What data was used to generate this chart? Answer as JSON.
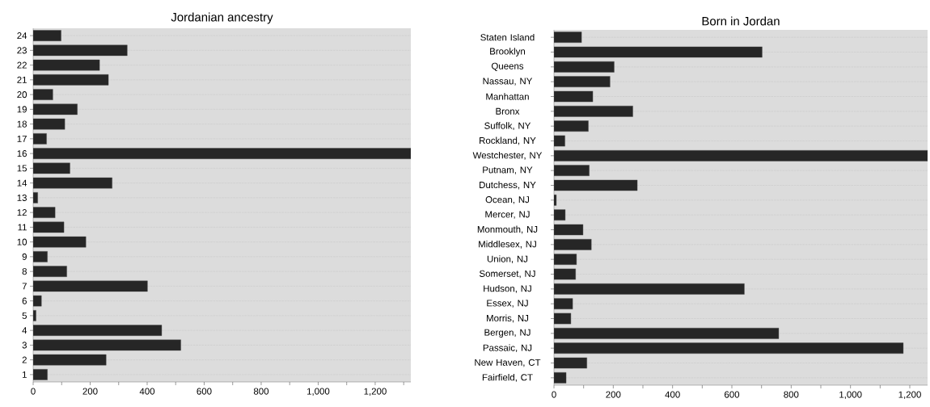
{
  "chart_data": [
    {
      "type": "bar",
      "orientation": "horizontal",
      "title": "Jordanian ancestry",
      "grid": "y",
      "color": "#262626",
      "categories": [
        "24",
        "23",
        "22",
        "21",
        "20",
        "19",
        "18",
        "17",
        "16",
        "15",
        "14",
        "13",
        "12",
        "11",
        "10",
        "9",
        "8",
        "7",
        "6",
        "5",
        "4",
        "3",
        "2",
        "1"
      ],
      "values": [
        98,
        330,
        233,
        264,
        69,
        155,
        111,
        47,
        1325,
        129,
        277,
        16,
        77,
        108,
        185,
        50,
        118,
        401,
        29,
        10,
        451,
        518,
        256,
        50
      ],
      "xlim": [
        0,
        1325
      ],
      "xticks": [
        0,
        {
          "value": 100,
          "label": null
        },
        200,
        {
          "value": 300,
          "label": null
        },
        400,
        {
          "value": 500,
          "label": null
        },
        600,
        {
          "value": 700,
          "label": null
        },
        800,
        {
          "value": 900,
          "label": null
        },
        {
          "value": 1000,
          "label": "1,000"
        },
        {
          "value": 1100,
          "label": null
        },
        {
          "value": 1200,
          "label": "1,200"
        },
        {
          "value": 1300,
          "label": null
        }
      ]
    },
    {
      "type": "bar",
      "orientation": "horizontal",
      "title": "Born in Jordan",
      "grid": "y",
      "color": "#262626",
      "categories": [
        "Staten Island",
        "Brooklyn",
        "Queens",
        "Nassau, NY",
        "Manhattan",
        "Bronx",
        "Suffolk, NY",
        "Rockland, NY",
        "Westchester, NY",
        "Putnam, NY",
        "Dutchess, NY",
        "Ocean, NJ",
        "Mercer, NJ",
        "Monmouth, NJ",
        "Middlesex, NJ",
        "Union, NJ",
        "Somerset, NJ",
        "Hudson, NJ",
        "Essex, NJ",
        "Morris, NJ",
        "Bergen, NJ",
        "Passaic, NJ",
        "New Haven, CT",
        "Fairfield, CT"
      ],
      "values": [
        93,
        702,
        203,
        189,
        131,
        266,
        116,
        37,
        1260,
        119,
        281,
        8,
        38,
        98,
        126,
        76,
        73,
        642,
        63,
        57,
        758,
        1178,
        111,
        41
      ],
      "xlim": [
        0,
        1260
      ],
      "xticks": [
        0,
        {
          "value": 100,
          "label": null
        },
        200,
        {
          "value": 300,
          "label": null
        },
        400,
        {
          "value": 500,
          "label": null
        },
        600,
        {
          "value": 700,
          "label": null
        },
        800,
        {
          "value": 900,
          "label": null
        },
        {
          "value": 1000,
          "label": "1,000"
        },
        {
          "value": 1100,
          "label": null
        },
        {
          "value": 1200,
          "label": "1,200"
        }
      ]
    }
  ]
}
